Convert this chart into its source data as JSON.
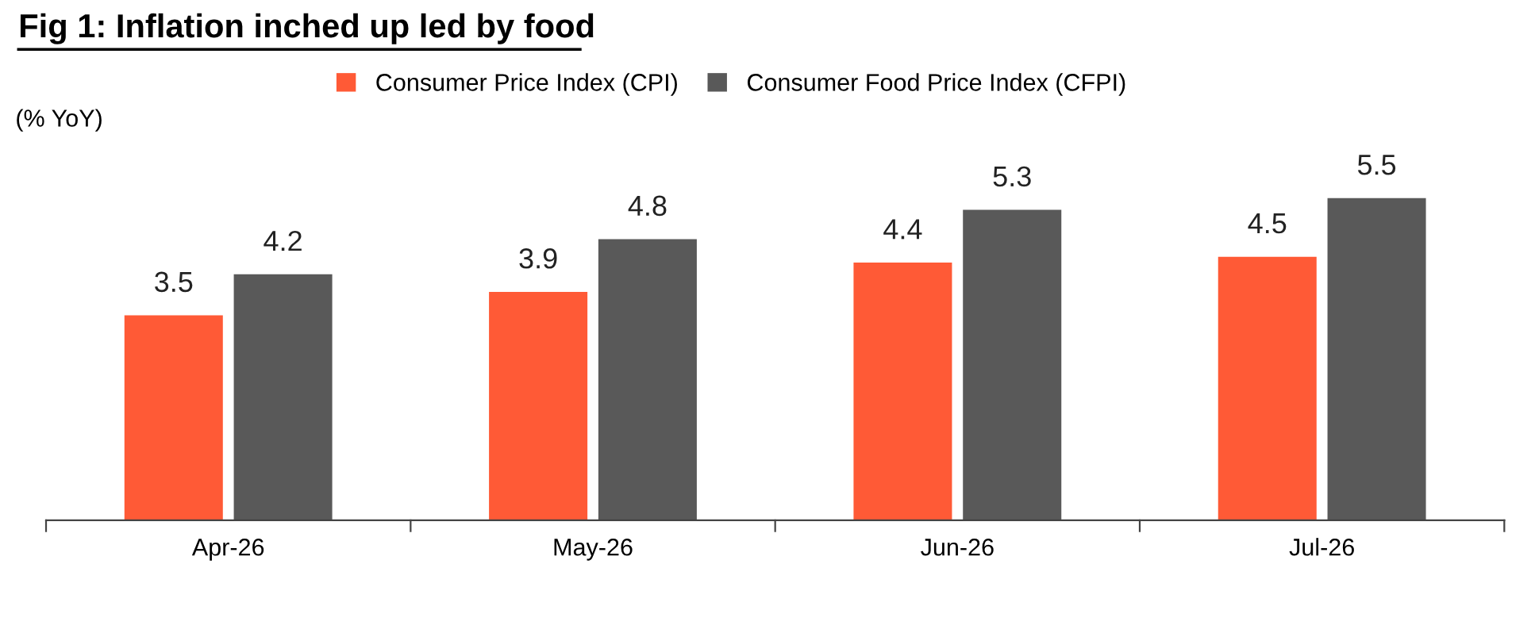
{
  "chart_data": {
    "type": "bar",
    "title": "Fig 1: Inflation inched up led by food",
    "ylabel": "(% YoY)",
    "categories": [
      "Apr-26",
      "May-26",
      "Jun-26",
      "Jul-26"
    ],
    "series": [
      {
        "name": "Consumer Price Index (CPI)",
        "color": "#ff5a36",
        "values": [
          3.5,
          3.9,
          4.4,
          4.5
        ]
      },
      {
        "name": "Consumer Food Price Index (CFPI)",
        "color": "#595959",
        "values": [
          4.2,
          4.8,
          5.3,
          5.5
        ]
      }
    ],
    "data_labels": true,
    "legend": "top",
    "grid": false
  }
}
